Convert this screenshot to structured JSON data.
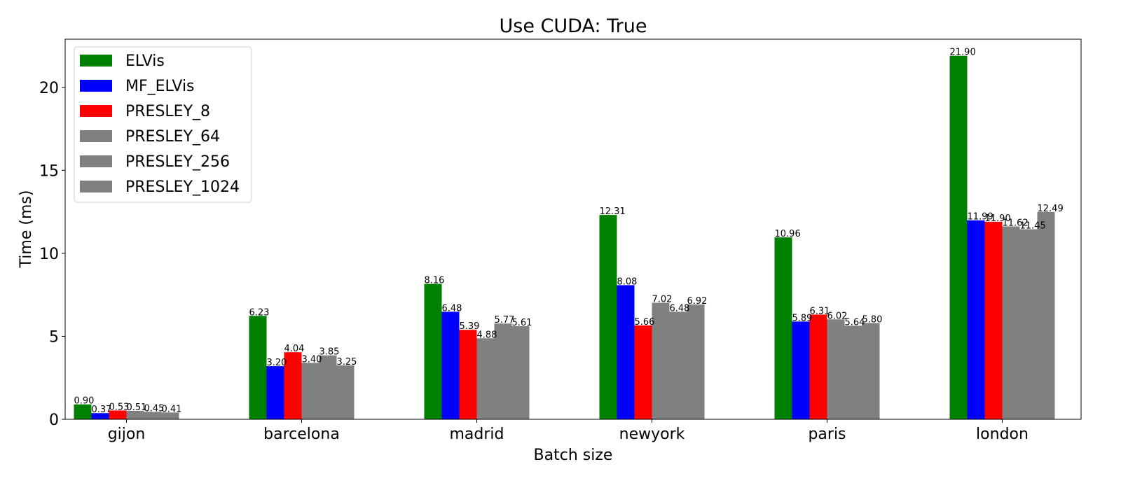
{
  "chart_data": {
    "type": "bar",
    "title": "Use CUDA: True",
    "xlabel": "Batch size",
    "ylabel": "Time (ms)",
    "ylim": [
      0,
      22.9
    ],
    "yticks": [
      0,
      5,
      10,
      15,
      20
    ],
    "grid": false,
    "legend_position": "top-left",
    "categories": [
      "gijon",
      "barcelona",
      "madrid",
      "newyork",
      "paris",
      "london"
    ],
    "series": [
      {
        "name": "ELVis",
        "color": "#008000",
        "values": [
          0.9,
          6.23,
          8.16,
          12.31,
          10.96,
          21.9
        ]
      },
      {
        "name": "MF_ELVis",
        "color": "#0000ff",
        "values": [
          0.37,
          3.2,
          6.48,
          8.08,
          5.89,
          11.99
        ]
      },
      {
        "name": "PRESLEY_8",
        "color": "#ff0000",
        "values": [
          0.53,
          4.04,
          5.39,
          5.66,
          6.31,
          11.9
        ]
      },
      {
        "name": "PRESLEY_64",
        "color": "#808080",
        "values": [
          0.51,
          3.4,
          4.88,
          7.02,
          6.02,
          11.62
        ]
      },
      {
        "name": "PRESLEY_256",
        "color": "#808080",
        "values": [
          0.45,
          3.85,
          5.77,
          6.48,
          5.64,
          11.45
        ]
      },
      {
        "name": "PRESLEY_1024",
        "color": "#808080",
        "values": [
          0.41,
          3.25,
          5.61,
          6.92,
          5.8,
          12.49
        ]
      }
    ]
  }
}
